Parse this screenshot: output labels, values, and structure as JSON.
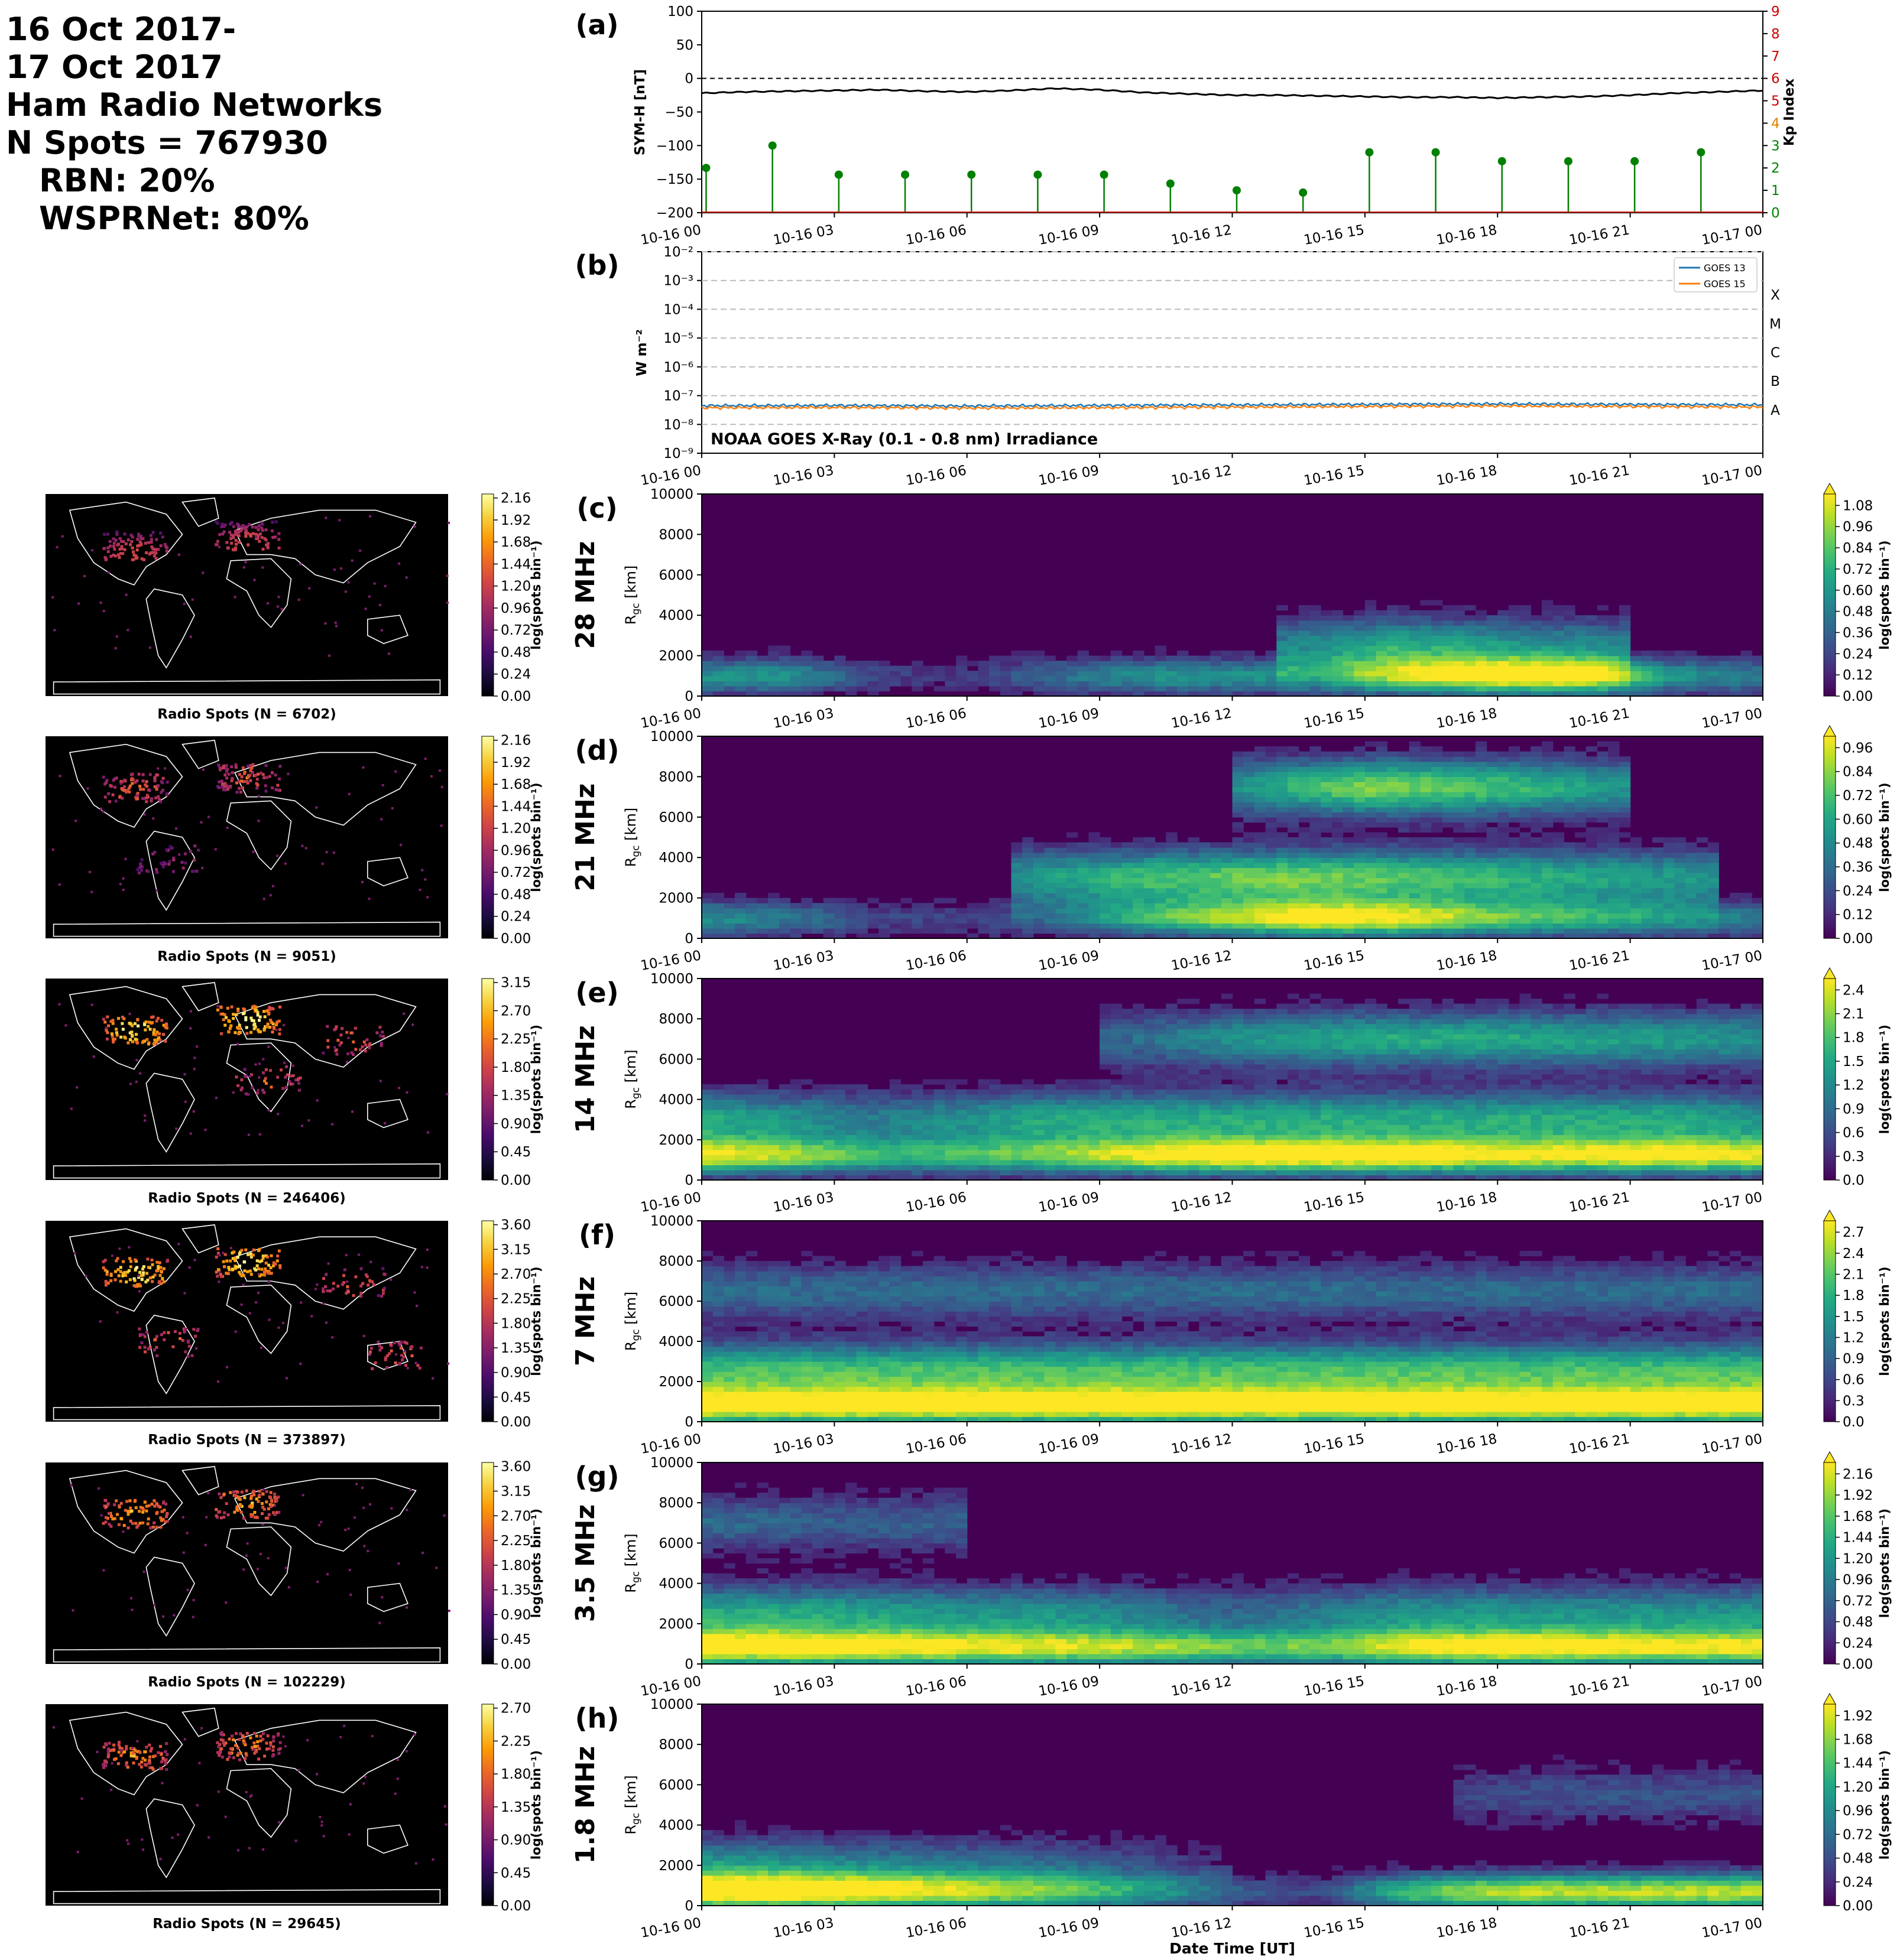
{
  "header": {
    "line1": "16 Oct 2017-",
    "line2": "17 Oct 2017",
    "line3": "Ham Radio Networks",
    "line4": "N Spots = 767930",
    "line5": "RBN: 20%",
    "line6": "WSPRNet: 80%"
  },
  "time_ticks": [
    "10-16 00",
    "10-16 03",
    "10-16 06",
    "10-16 09",
    "10-16 12",
    "10-16 15",
    "10-16 18",
    "10-16 21",
    "10-17 00"
  ],
  "xlabel": "Date Time [UT]",
  "chart_data": [
    {
      "type": "line",
      "panel": "(a)",
      "ylabel": "SYM-H [nT]",
      "ylim": [
        -200,
        100
      ],
      "yticks": [
        "100",
        "50",
        "0",
        "−50",
        "−100",
        "−150",
        "−200"
      ],
      "x_hours": [
        0,
        1,
        2,
        3,
        4,
        5,
        6,
        7,
        8,
        9,
        10,
        11,
        12,
        13,
        14,
        15,
        16,
        17,
        18,
        19,
        20,
        21,
        22,
        23,
        24
      ],
      "symh": [
        -22,
        -20,
        -19,
        -18,
        -17,
        -19,
        -20,
        -18,
        -15,
        -17,
        -21,
        -23,
        -25,
        -25,
        -26,
        -27,
        -28,
        -28,
        -29,
        -28,
        -27,
        -25,
        -22,
        -20,
        -18
      ],
      "y2label": "Kp Index",
      "y2lim": [
        0,
        9
      ],
      "y2ticks": [
        "0",
        "1",
        "2",
        "3",
        "4",
        "5",
        "6",
        "7",
        "8",
        "9"
      ],
      "kp_hours": [
        0,
        1.5,
        3,
        4.5,
        6,
        7.5,
        9,
        10.5,
        12,
        13.5,
        15,
        16.5,
        18,
        19.5,
        21,
        22.5
      ],
      "kp_values": [
        2.0,
        3.0,
        1.7,
        1.7,
        1.7,
        1.7,
        1.7,
        1.3,
        1.0,
        0.9,
        2.7,
        2.7,
        2.3,
        2.3,
        2.3,
        2.7
      ],
      "colors": {
        "symh": "#000000",
        "kp": "#008000",
        "zero_line": "#000000"
      }
    },
    {
      "type": "line",
      "panel": "(b)",
      "title": "NOAA GOES X-Ray (0.1 - 0.8 nm) Irradiance",
      "ylabel": "W m⁻²",
      "yscale": "log",
      "ylim": [
        1e-09,
        0.01
      ],
      "yticks": [
        "10⁻⁹",
        "10⁻⁸",
        "10⁻⁷",
        "10⁻⁶",
        "10⁻⁵",
        "10⁻⁴",
        "10⁻³",
        "10⁻²"
      ],
      "flare_classes": [
        "A",
        "B",
        "C",
        "M",
        "X"
      ],
      "series": [
        {
          "name": "GOES 13",
          "color": "#1f77b4",
          "x_hours": [
            0,
            3,
            6,
            9,
            12,
            15,
            18,
            21,
            24
          ],
          "values": [
            4.5e-08,
            4.6e-08,
            4.4e-08,
            4.6e-08,
            4.8e-08,
            5e-08,
            5.2e-08,
            5e-08,
            4.8e-08
          ]
        },
        {
          "name": "GOES 15",
          "color": "#ff7f0e",
          "x_hours": [
            0,
            3,
            6,
            9,
            12,
            15,
            18,
            21,
            24
          ],
          "values": [
            3.8e-08,
            3.9e-08,
            3.7e-08,
            3.8e-08,
            4e-08,
            4.2e-08,
            4.4e-08,
            4.2e-08,
            4e-08
          ]
        }
      ]
    },
    {
      "type": "heatmap",
      "panel": "(c)",
      "band": "28 MHz",
      "ylabel": "R_gc [km]",
      "ylim": [
        0,
        10000
      ],
      "yticks": [
        "0",
        "2000",
        "4000",
        "6000",
        "8000",
        "10000"
      ],
      "colorbar_label": "log(spots bin⁻¹)",
      "colorbar_ticks": [
        "0.00",
        "0.12",
        "0.24",
        "0.36",
        "0.48",
        "0.60",
        "0.72",
        "0.84",
        "0.96",
        "1.08"
      ],
      "map_caption": "Radio Spots (N = 6702)",
      "map_colorbar_ticks": [
        "0.00",
        "0.24",
        "0.48",
        "0.72",
        "0.96",
        "1.20",
        "1.44",
        "1.68",
        "1.92",
        "2.16"
      ],
      "bands": [
        {
          "r": 1000,
          "h0": 0,
          "h1": 24,
          "i": [
            0.5,
            0.5,
            0.2,
            0.15,
            0.35,
            0.5,
            0.5,
            0.5,
            0.8,
            1.0,
            1.0,
            0.5,
            0.4
          ]
        },
        {
          "r": 2500,
          "h0": 13,
          "h1": 21,
          "i": [
            0.4,
            0.6,
            0.5,
            0.4
          ]
        }
      ]
    },
    {
      "type": "heatmap",
      "panel": "(d)",
      "band": "21 MHz",
      "ylabel": "R_gc [km]",
      "ylim": [
        0,
        10000
      ],
      "yticks": [
        "0",
        "2000",
        "4000",
        "6000",
        "8000",
        "10000"
      ],
      "colorbar_label": "log(spots bin⁻¹)",
      "colorbar_ticks": [
        "0.00",
        "0.12",
        "0.24",
        "0.36",
        "0.48",
        "0.60",
        "0.72",
        "0.84",
        "0.96"
      ],
      "map_caption": "Radio Spots (N = 9051)",
      "map_colorbar_ticks": [
        "0.00",
        "0.24",
        "0.48",
        "0.72",
        "0.96",
        "1.20",
        "1.44",
        "1.68",
        "1.92",
        "2.16"
      ],
      "bands": [
        {
          "r": 1000,
          "h0": 0,
          "h1": 24,
          "i": [
            0.5,
            0.4,
            0.2,
            0.2,
            0.3,
            0.6,
            0.8,
            1.0,
            0.9,
            0.7,
            0.6,
            0.5,
            0.4
          ]
        },
        {
          "r": 3000,
          "h0": 7,
          "h1": 23,
          "i": [
            0.5,
            0.7,
            0.8,
            0.7,
            0.6,
            0.5
          ]
        },
        {
          "r": 7500,
          "h0": 12,
          "h1": 21,
          "i": [
            0.5,
            0.8,
            0.7,
            0.5
          ]
        }
      ]
    },
    {
      "type": "heatmap",
      "panel": "(e)",
      "band": "14 MHz",
      "ylabel": "R_gc [km]",
      "ylim": [
        0,
        10000
      ],
      "yticks": [
        "0",
        "2000",
        "4000",
        "6000",
        "8000",
        "10000"
      ],
      "colorbar_label": "log(spots bin⁻¹)",
      "colorbar_ticks": [
        "0.0",
        "0.3",
        "0.6",
        "0.9",
        "1.2",
        "1.5",
        "1.8",
        "2.1",
        "2.4"
      ],
      "map_caption": "Radio Spots (N = 246406)",
      "map_colorbar_ticks": [
        "0.00",
        "0.45",
        "0.90",
        "1.35",
        "1.80",
        "2.25",
        "2.70",
        "3.15"
      ],
      "bands": [
        {
          "r": 1200,
          "h0": 0,
          "h1": 24,
          "i": [
            0.9,
            0.8,
            0.6,
            0.6,
            0.7,
            0.9,
            1.0,
            1.0,
            1.0,
            0.9,
            0.9,
            0.95,
            0.9
          ]
        },
        {
          "r": 3000,
          "h0": 0,
          "h1": 24,
          "i": [
            0.6,
            0.5,
            0.4,
            0.5,
            0.6,
            0.6,
            0.6,
            0.6,
            0.6,
            0.6,
            0.6,
            0.6,
            0.5
          ]
        },
        {
          "r": 7000,
          "h0": 9,
          "h1": 24,
          "i": [
            0.3,
            0.5,
            0.6,
            0.6,
            0.55,
            0.5
          ]
        }
      ]
    },
    {
      "type": "heatmap",
      "panel": "(f)",
      "band": "7 MHz",
      "ylabel": "R_gc [km]",
      "ylim": [
        0,
        10000
      ],
      "yticks": [
        "0",
        "2000",
        "4000",
        "6000",
        "8000",
        "10000"
      ],
      "colorbar_label": "log(spots bin⁻¹)",
      "colorbar_ticks": [
        "0.0",
        "0.3",
        "0.6",
        "0.9",
        "1.2",
        "1.5",
        "1.8",
        "2.1",
        "2.4",
        "2.7"
      ],
      "map_caption": "Radio Spots (N = 373897)",
      "map_colorbar_ticks": [
        "0.00",
        "0.45",
        "0.90",
        "1.35",
        "1.80",
        "2.25",
        "2.70",
        "3.15",
        "3.60"
      ],
      "bands": [
        {
          "r": 800,
          "h0": 0,
          "h1": 24,
          "i": [
            1.0,
            1.0,
            1.0,
            1.0,
            1.0,
            1.0,
            1.0,
            1.0,
            1.0,
            1.0,
            1.0,
            1.0,
            1.0
          ]
        },
        {
          "r": 2500,
          "h0": 0,
          "h1": 24,
          "i": [
            0.7,
            0.7,
            0.7,
            0.7,
            0.7,
            0.7,
            0.7,
            0.7,
            0.7,
            0.7,
            0.7,
            0.7,
            0.7
          ]
        },
        {
          "r": 6500,
          "h0": 0,
          "h1": 24,
          "i": [
            0.35,
            0.35,
            0.35,
            0.35,
            0.35,
            0.35,
            0.35,
            0.35,
            0.35,
            0.35,
            0.35,
            0.35,
            0.35
          ]
        }
      ]
    },
    {
      "type": "heatmap",
      "panel": "(g)",
      "band": "3.5 MHz",
      "ylabel": "R_gc [km]",
      "ylim": [
        0,
        10000
      ],
      "yticks": [
        "0",
        "2000",
        "4000",
        "6000",
        "8000",
        "10000"
      ],
      "colorbar_label": "log(spots bin⁻¹)",
      "colorbar_ticks": [
        "0.00",
        "0.24",
        "0.48",
        "0.72",
        "0.96",
        "1.20",
        "1.44",
        "1.68",
        "1.92",
        "2.16"
      ],
      "map_caption": "Radio Spots (N = 102229)",
      "map_colorbar_ticks": [
        "0.00",
        "0.45",
        "0.90",
        "1.35",
        "1.80",
        "2.25",
        "2.70",
        "3.15",
        "3.60"
      ],
      "bands": [
        {
          "r": 800,
          "h0": 0,
          "h1": 24,
          "i": [
            1.0,
            1.0,
            0.95,
            0.9,
            0.85,
            0.8,
            0.7,
            0.7,
            0.9,
            1.0,
            0.95,
            0.9,
            0.9
          ]
        },
        {
          "r": 2500,
          "h0": 0,
          "h1": 24,
          "i": [
            0.6,
            0.6,
            0.55,
            0.5,
            0.5,
            0.4,
            0.3,
            0.4,
            0.5,
            0.5,
            0.5,
            0.5,
            0.5
          ]
        },
        {
          "r": 7000,
          "h0": 0,
          "h1": 6,
          "i": [
            0.35,
            0.3,
            0.3
          ]
        }
      ]
    },
    {
      "type": "heatmap",
      "panel": "(h)",
      "band": "1.8 MHz",
      "ylabel": "R_gc [km]",
      "ylim": [
        0,
        10000
      ],
      "yticks": [
        "0",
        "2000",
        "4000",
        "6000",
        "8000",
        "10000"
      ],
      "colorbar_label": "log(spots bin⁻¹)",
      "colorbar_ticks": [
        "0.00",
        "0.24",
        "0.48",
        "0.72",
        "0.96",
        "1.20",
        "1.44",
        "1.68",
        "1.92"
      ],
      "map_caption": "Radio Spots (N = 29645)",
      "map_colorbar_ticks": [
        "0.00",
        "0.45",
        "0.90",
        "1.35",
        "1.80",
        "2.25",
        "2.70"
      ],
      "bands": [
        {
          "r": 700,
          "h0": 0,
          "h1": 24,
          "i": [
            1.0,
            1.0,
            0.9,
            0.8,
            0.7,
            0.5,
            0.3,
            0.2,
            0.7,
            0.9,
            0.9,
            0.9,
            0.9
          ]
        },
        {
          "r": 2000,
          "h0": 0,
          "h1": 12,
          "i": [
            0.5,
            0.45,
            0.4,
            0.35,
            0.3,
            0.2,
            0.1
          ]
        },
        {
          "r": 5500,
          "h0": 17,
          "h1": 24,
          "i": [
            0.2,
            0.25,
            0.25,
            0.25
          ]
        }
      ]
    }
  ]
}
